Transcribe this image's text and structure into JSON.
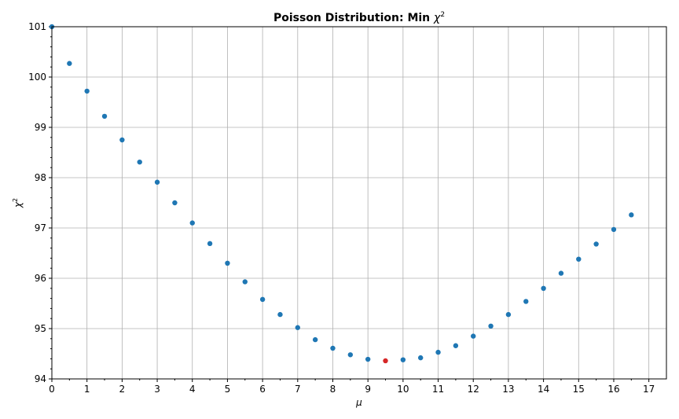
{
  "chart_data": {
    "type": "scatter",
    "title_main": "Poisson Distribution: Min ",
    "title_symbol": "χ",
    "title_sup": "2",
    "xlabel": "μ",
    "ylabel_symbol": "χ",
    "ylabel_sup": "2",
    "xlim": [
      0,
      17.5
    ],
    "ylim": [
      94,
      101
    ],
    "xticks": [
      "0",
      "1",
      "2",
      "3",
      "4",
      "5",
      "6",
      "7",
      "8",
      "9",
      "10",
      "11",
      "12",
      "13",
      "14",
      "15",
      "16",
      "17"
    ],
    "yticks": [
      "94",
      "95",
      "96",
      "97",
      "98",
      "99",
      "100",
      "101"
    ],
    "grid": true,
    "point_color": "#1f77b4",
    "min_color": "#d62728",
    "points": [
      {
        "x": 0.0,
        "y": 101.0
      },
      {
        "x": 0.5,
        "y": 100.27
      },
      {
        "x": 1.0,
        "y": 99.72
      },
      {
        "x": 1.5,
        "y": 99.22
      },
      {
        "x": 2.0,
        "y": 98.75
      },
      {
        "x": 2.5,
        "y": 98.31
      },
      {
        "x": 3.0,
        "y": 97.91
      },
      {
        "x": 3.5,
        "y": 97.5
      },
      {
        "x": 4.0,
        "y": 97.1
      },
      {
        "x": 4.5,
        "y": 96.69
      },
      {
        "x": 5.0,
        "y": 96.3
      },
      {
        "x": 5.5,
        "y": 95.93
      },
      {
        "x": 6.0,
        "y": 95.58
      },
      {
        "x": 6.5,
        "y": 95.28
      },
      {
        "x": 7.0,
        "y": 95.02
      },
      {
        "x": 7.5,
        "y": 94.78
      },
      {
        "x": 8.0,
        "y": 94.61
      },
      {
        "x": 8.5,
        "y": 94.48
      },
      {
        "x": 9.0,
        "y": 94.39
      },
      {
        "x": 10.0,
        "y": 94.38
      },
      {
        "x": 10.5,
        "y": 94.42
      },
      {
        "x": 11.0,
        "y": 94.53
      },
      {
        "x": 11.5,
        "y": 94.66
      },
      {
        "x": 12.0,
        "y": 94.85
      },
      {
        "x": 12.5,
        "y": 95.05
      },
      {
        "x": 13.0,
        "y": 95.28
      },
      {
        "x": 13.5,
        "y": 95.54
      },
      {
        "x": 14.0,
        "y": 95.8
      },
      {
        "x": 14.5,
        "y": 96.1
      },
      {
        "x": 15.0,
        "y": 96.38
      },
      {
        "x": 15.5,
        "y": 96.68
      },
      {
        "x": 16.0,
        "y": 96.97
      },
      {
        "x": 16.5,
        "y": 97.26
      }
    ],
    "min_point": {
      "x": 9.5,
      "y": 94.36
    }
  }
}
